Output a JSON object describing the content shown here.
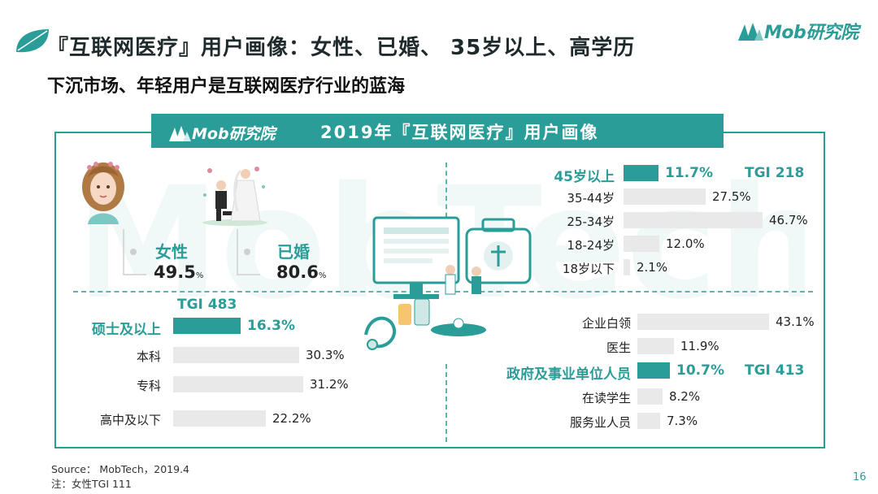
{
  "slide": {
    "title": "『互联网医疗』用户画像：女性、已婚、 35岁以上、高学历",
    "subtitle": "下沉市场、年轻用户是互联网医疗行业的蓝海",
    "brand": "Mob研究院",
    "page_number": "16",
    "watermark": "MobTech",
    "colors": {
      "accent": "#2a9d99",
      "bar_grey": "#e9e9ea"
    }
  },
  "infographic": {
    "banner_brand": "Mob研究院",
    "banner_title": "2019年『互联网医疗』用户画像"
  },
  "footer": {
    "source": "Source： MobTech，2019.4",
    "note": "注：女性TGI 111"
  },
  "chart_data": [
    {
      "type": "stat",
      "panel": "gender-marital",
      "items": [
        {
          "label": "女性",
          "value": 49.5,
          "value_text": "49.5",
          "unit": "%",
          "icon": "woman-portrait-icon"
        },
        {
          "label": "已婚",
          "value": 80.6,
          "value_text": "80.6",
          "unit": "%",
          "icon": "wedding-couple-icon"
        }
      ]
    },
    {
      "type": "bar",
      "panel": "age",
      "orientation": "horizontal",
      "categories": [
        "45岁以上",
        "35-44岁",
        "25-34岁",
        "18-24岁",
        "18岁以下"
      ],
      "values": [
        11.7,
        27.5,
        46.7,
        12.0,
        2.1
      ],
      "value_labels": [
        "11.7%",
        "27.5%",
        "46.7%",
        "12.0%",
        "2.1%"
      ],
      "highlight": [
        0
      ],
      "tgi": [
        {
          "index": 0,
          "text": "TGI 218"
        }
      ]
    },
    {
      "type": "bar",
      "panel": "education",
      "orientation": "horizontal",
      "categories": [
        "硕士及以上",
        "本科",
        "专科",
        "高中及以下"
      ],
      "values": [
        16.3,
        30.3,
        31.2,
        22.2
      ],
      "value_labels": [
        "16.3%",
        "30.3%",
        "31.2%",
        "22.2%"
      ],
      "highlight": [
        0
      ],
      "tgi": [
        {
          "index": 0,
          "text": "TGI 483"
        }
      ]
    },
    {
      "type": "bar",
      "panel": "occupation",
      "orientation": "horizontal",
      "categories": [
        "企业白领",
        "医生",
        "政府及事业单位人员",
        "在读学生",
        "服务业人员"
      ],
      "values": [
        43.1,
        11.9,
        10.7,
        8.2,
        7.3
      ],
      "value_labels": [
        "43.1%",
        "11.9%",
        "10.7%",
        "8.2%",
        "7.3%"
      ],
      "highlight": [
        2
      ],
      "tgi": [
        {
          "index": 2,
          "text": "TGI 413"
        }
      ]
    }
  ]
}
